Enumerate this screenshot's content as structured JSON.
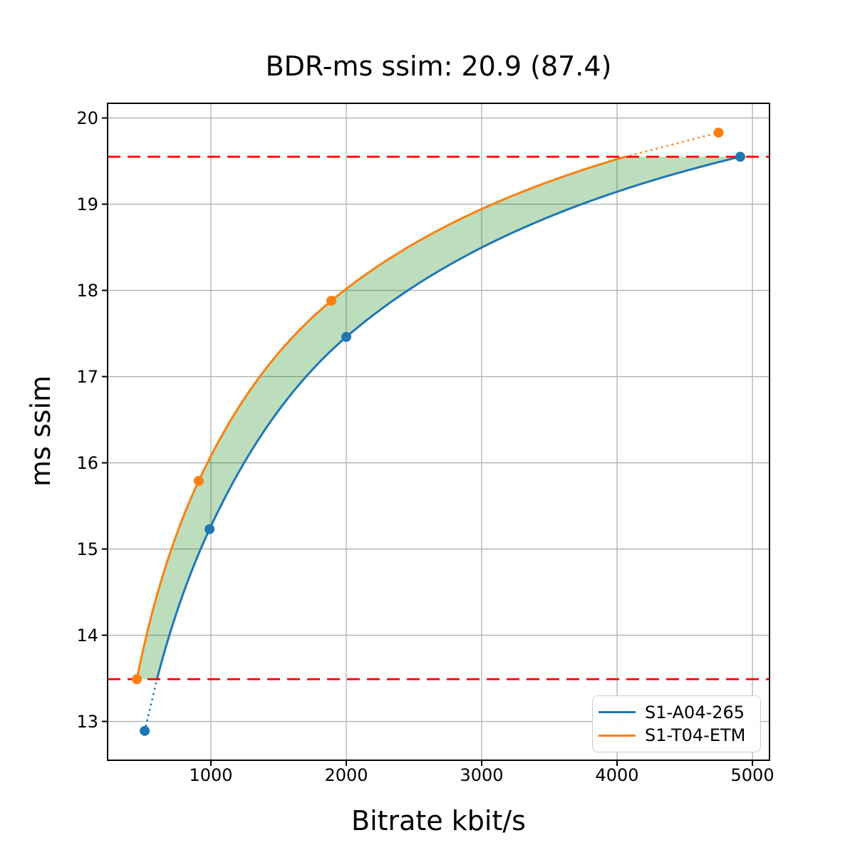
{
  "title": "BDR-ms ssim: 20.9 (87.4)",
  "chart_data": {
    "type": "line",
    "title": "BDR-ms ssim: 20.9 (87.4)",
    "xlabel": "Bitrate kbit/s",
    "ylabel": "ms ssim",
    "xlim": [
      237,
      5126
    ],
    "ylim": [
      12.55,
      20.17
    ],
    "x_ticks": [
      1000,
      2000,
      3000,
      4000,
      5000
    ],
    "x_tick_labels": [
      "1000",
      "2000",
      "3000",
      "4000",
      "5000"
    ],
    "y_ticks": [
      13,
      14,
      15,
      16,
      17,
      18,
      19,
      20
    ],
    "y_tick_labels": [
      "13",
      "14",
      "15",
      "16",
      "17",
      "18",
      "19",
      "20"
    ],
    "grid": true,
    "grid_color": "#b0b0b0",
    "interpolation": "pchip-log-x",
    "series": [
      {
        "name": "S1-A04-265",
        "color": "#1f77b4",
        "x": [
          511,
          990,
          2000,
          4910
        ],
        "y": [
          12.89,
          15.23,
          17.46,
          19.55
        ],
        "clip": "min"
      },
      {
        "name": "S1-T04-ETM",
        "color": "#ff7f0e",
        "x": [
          453,
          910,
          1890,
          4750
        ],
        "y": [
          13.49,
          15.79,
          17.88,
          19.83
        ],
        "clip": "max"
      }
    ],
    "bd_interval": {
      "low": 13.49,
      "high": 19.55,
      "line_color": "#ff0000",
      "line_style": "dashed"
    },
    "fill_between": {
      "color": "#008000",
      "opacity": 0.26
    },
    "legend": {
      "position": "lower right",
      "entries": [
        "S1-A04-265",
        "S1-T04-ETM"
      ]
    }
  }
}
